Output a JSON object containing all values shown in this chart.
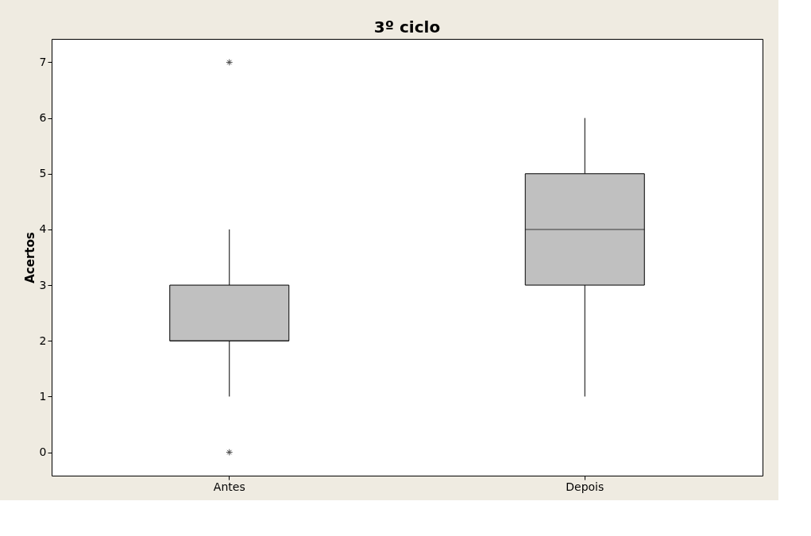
{
  "chart_data": {
    "type": "box",
    "title": "3º ciclo",
    "ylabel": "Acertos",
    "categories": [
      "Antes",
      "Depois"
    ],
    "boxes": [
      {
        "low": 1,
        "q1": 2,
        "median": 2,
        "q3": 3,
        "high": 4,
        "outliers": [
          0,
          7
        ]
      },
      {
        "low": 1,
        "q1": 3,
        "median": 4,
        "q3": 5,
        "high": 6
      }
    ],
    "color": "#c0c0c0",
    "ylim": [
      -0.42,
      7.42
    ],
    "yticks": [
      0,
      1,
      2,
      3,
      4,
      5,
      6,
      7
    ],
    "grid": false
  }
}
